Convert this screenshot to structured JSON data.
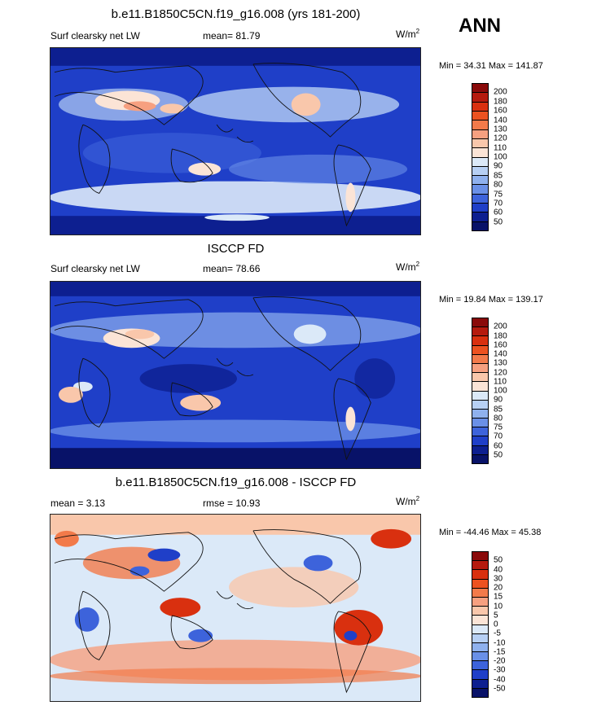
{
  "season": "ANN",
  "panels": [
    {
      "title": "b.e11.B1850C5CN.f19_g16.008 (yrs 181-200)",
      "left_label": "Surf clearsky net LW",
      "mean": "mean=  81.79",
      "units_base": "W/m",
      "units_sup": "2",
      "minmax": "Min =  34.31 Max = 141.87",
      "colorbar_labels": [
        "200",
        "180",
        "160",
        "140",
        "130",
        "120",
        "110",
        "100",
        "90",
        "85",
        "80",
        "75",
        "70",
        "60",
        "50"
      ]
    },
    {
      "title": "ISCCP FD",
      "left_label": "Surf clearsky net LW",
      "mean": "mean=  78.66",
      "units_base": "W/m",
      "units_sup": "2",
      "minmax": "Min =  19.84 Max = 139.17",
      "colorbar_labels": [
        "200",
        "180",
        "160",
        "140",
        "130",
        "120",
        "110",
        "100",
        "90",
        "85",
        "80",
        "75",
        "70",
        "60",
        "50"
      ]
    },
    {
      "title": "b.e11.B1850C5CN.f19_g16.008 - ISCCP FD",
      "left_label": "mean =   3.13",
      "mean": "rmse =  10.93",
      "units_base": "W/m",
      "units_sup": "2",
      "minmax": "Min = -44.46 Max =  45.38",
      "colorbar_labels": [
        "50",
        "40",
        "30",
        "20",
        "15",
        "10",
        "5",
        "0",
        "-5",
        "-10",
        "-15",
        "-20",
        "-30",
        "-40",
        "-50"
      ]
    }
  ],
  "colors": {
    "abs_scale": [
      "#8a0a0a",
      "#b51a0e",
      "#d9300f",
      "#ec5220",
      "#f27a4a",
      "#f6a080",
      "#f9c7ab",
      "#fbe4d6",
      "#dbe9f8",
      "#b7d0f4",
      "#8fb1ee",
      "#6a90e7",
      "#3d63db",
      "#1f3fc8",
      "#0d1f90",
      "#081268"
    ],
    "diff_scale": [
      "#8a0a0a",
      "#b51a0e",
      "#d9300f",
      "#ec5220",
      "#f27a4a",
      "#f6a080",
      "#f9c7ab",
      "#fbe4d6",
      "#dbe9f8",
      "#b7d0f4",
      "#8fb1ee",
      "#6a90e7",
      "#3d63db",
      "#1f3fc8",
      "#0d1f90",
      "#081268"
    ]
  }
}
